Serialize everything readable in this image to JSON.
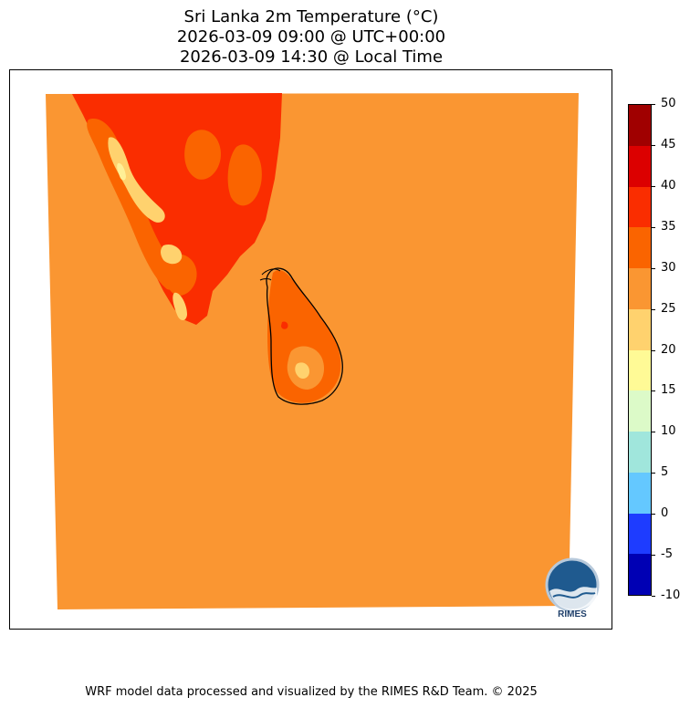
{
  "title": {
    "line1": "Sri Lanka 2m Temperature (°C)",
    "line2": "2026-03-09 09:00 @ UTC+00:00",
    "line3": "2026-03-09 14:30 @ Local Time"
  },
  "colorbar": {
    "levels": [
      {
        "from": -10,
        "to": -5,
        "color": "#0000b4"
      },
      {
        "from": -5,
        "to": 0,
        "color": "#1e3cff"
      },
      {
        "from": 0,
        "to": 5,
        "color": "#64c8ff"
      },
      {
        "from": 5,
        "to": 10,
        "color": "#a0e6dc"
      },
      {
        "from": 10,
        "to": 15,
        "color": "#dcfac8"
      },
      {
        "from": 15,
        "to": 20,
        "color": "#fffa96"
      },
      {
        "from": 20,
        "to": 25,
        "color": "#ffd26e"
      },
      {
        "from": 25,
        "to": 30,
        "color": "#fa9632"
      },
      {
        "from": 30,
        "to": 35,
        "color": "#fa6400"
      },
      {
        "from": 35,
        "to": 40,
        "color": "#fa2d00"
      },
      {
        "from": 40,
        "to": 45,
        "color": "#dc0000"
      },
      {
        "from": 45,
        "to": 50,
        "color": "#a00000"
      }
    ],
    "tick_labels": [
      "50",
      "45",
      "40",
      "35",
      "30",
      "25",
      "20",
      "15",
      "10",
      "5",
      "0",
      "-5",
      "-10"
    ]
  },
  "map": {
    "background_range": "25-30",
    "dominant_land_range_india": "35-40",
    "sri_lanka_range": "30-35",
    "coastline_color": "#000000"
  },
  "logo": {
    "text": "RIMES"
  },
  "footer": "WRF model data processed and visualized by the RIMES R&D Team. © 2025"
}
